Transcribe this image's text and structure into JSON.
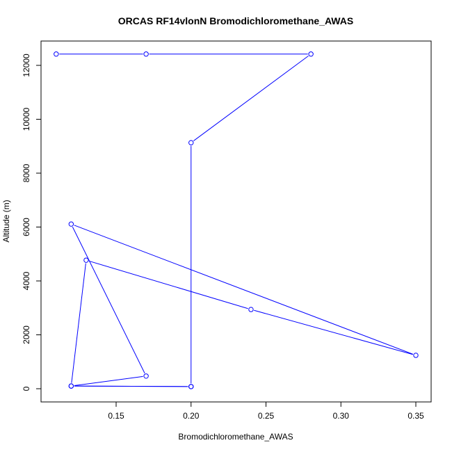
{
  "chart_data": {
    "type": "line",
    "title": "ORCAS RF14vlonN Bromodichloromethane_AWAS",
    "xlabel": "Bromodichloromethane_AWAS",
    "ylabel": "Altitude (m)",
    "xlim": [
      0.1,
      0.35
    ],
    "ylim": [
      0,
      12500
    ],
    "x_ticks": [
      0.15,
      0.2,
      0.25,
      0.3,
      0.35
    ],
    "x_tick_labels": [
      "0.15",
      "0.20",
      "0.25",
      "0.30",
      "0.35"
    ],
    "y_ticks": [
      0,
      2000,
      4000,
      6000,
      8000,
      10000,
      12000
    ],
    "y_tick_labels": [
      "0",
      "2000",
      "4000",
      "6000",
      "8000",
      "10000",
      "12000"
    ],
    "grid": false,
    "series": [
      {
        "color": "#0000ff",
        "marker": "open-circle",
        "x": [
          0.11,
          0.17,
          0.28,
          0.2,
          0.2,
          0.12,
          0.17,
          0.12,
          0.35,
          0.24,
          0.13,
          0.12,
          0.2
        ],
        "y": [
          12420,
          12420,
          12420,
          9130,
          80,
          100,
          470,
          6110,
          1240,
          2940,
          4770,
          100,
          80
        ]
      }
    ]
  }
}
